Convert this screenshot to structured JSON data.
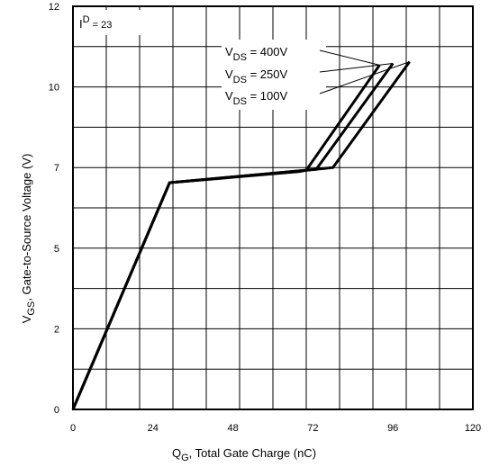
{
  "chart_data": {
    "type": "line",
    "title": "",
    "xlabel": {
      "main": "Q",
      "sub": "G",
      "rest": ", Total Gate Charge (nC)"
    },
    "ylabel": {
      "main": "V",
      "sub": "GS",
      "rest": ", Gate-to-Source Voltage (V)"
    },
    "xlim": [
      0,
      120
    ],
    "ylim": [
      0,
      12
    ],
    "xticks": [
      0,
      24,
      48,
      72,
      96,
      120
    ],
    "xtick_labels": [
      "0",
      "24",
      "48",
      "72",
      "96",
      "120"
    ],
    "yticks": [
      0,
      2.4,
      4.8,
      7.2,
      9.6,
      12
    ],
    "ytick_labels": [
      "0",
      "2",
      "5",
      "7",
      "10",
      "12"
    ],
    "grid": true,
    "grid_divisions": {
      "x": 12,
      "y": 10
    },
    "series": [
      {
        "name": "VDS = 100V",
        "x": [
          0,
          29,
          73,
          78,
          101
        ],
        "y": [
          0,
          6.75,
          7.15,
          7.2,
          10.35
        ]
      },
      {
        "name": "VDS = 250V",
        "x": [
          0,
          29,
          70,
          73,
          96
        ],
        "y": [
          0,
          6.75,
          7.12,
          7.15,
          10.3
        ]
      },
      {
        "name": "VDS = 400V",
        "x": [
          0,
          29,
          68,
          70,
          92
        ],
        "y": [
          0,
          6.75,
          7.08,
          7.12,
          10.25
        ]
      }
    ],
    "annotations": {
      "id_label": {
        "main": "I",
        "sup": "D",
        "rest": " = 23"
      },
      "vds_labels": [
        {
          "main": "V",
          "sub": "DS",
          "rest": " = 400V",
          "series": "VDS = 400V"
        },
        {
          "main": "V",
          "sub": "DS",
          "rest": " = 250V",
          "series": "VDS = 250V"
        },
        {
          "main": "V",
          "sub": "DS",
          "rest": " = 100V",
          "series": "VDS = 100V"
        }
      ]
    }
  }
}
